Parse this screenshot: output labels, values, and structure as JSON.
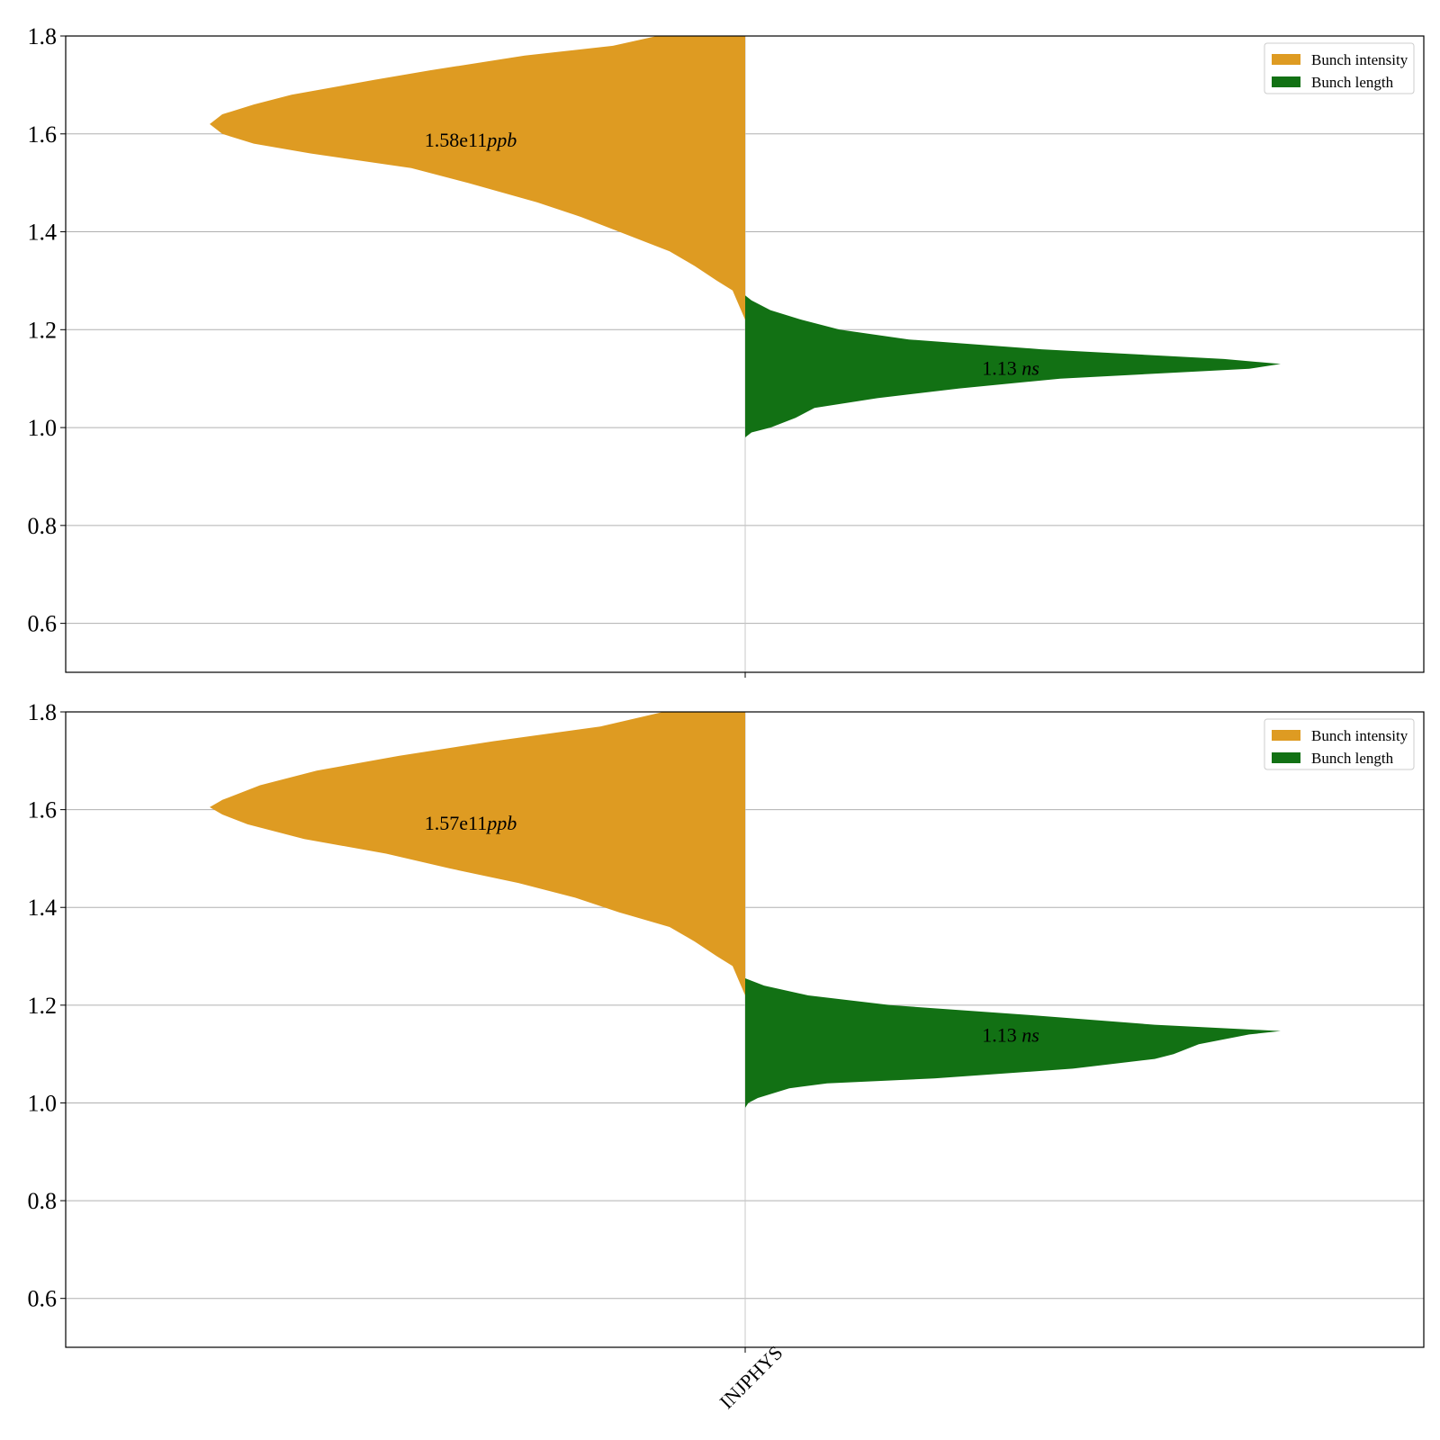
{
  "chart_data": [
    {
      "type": "violin",
      "ylim": [
        0.5,
        1.8
      ],
      "yticks": [
        "0.6",
        "0.8",
        "1.0",
        "1.2",
        "1.4",
        "1.6",
        "1.8"
      ],
      "grid": true,
      "legend_position": "upper right",
      "legend": [
        {
          "label": "Bunch intensity",
          "color": "#de9b22"
        },
        {
          "label": "Bunch length",
          "color": "#127114"
        }
      ],
      "categories": [
        "INJPHYS"
      ],
      "series": [
        {
          "name": "Bunch intensity",
          "side": "left",
          "color": "#de9b22",
          "peak": 1.62,
          "annotation_value": "1.58e11",
          "annotation_unit": "ppb",
          "profile": [
            [
              1.22,
              0.0
            ],
            [
              1.25,
              0.01
            ],
            [
              1.28,
              0.02
            ],
            [
              1.3,
              0.045
            ],
            [
              1.33,
              0.08
            ],
            [
              1.36,
              0.12
            ],
            [
              1.4,
              0.2
            ],
            [
              1.43,
              0.26
            ],
            [
              1.46,
              0.33
            ],
            [
              1.5,
              0.44
            ],
            [
              1.53,
              0.53
            ],
            [
              1.56,
              0.69
            ],
            [
              1.58,
              0.78
            ],
            [
              1.6,
              0.83
            ],
            [
              1.62,
              0.85
            ],
            [
              1.64,
              0.83
            ],
            [
              1.66,
              0.78
            ],
            [
              1.68,
              0.72
            ],
            [
              1.71,
              0.59
            ],
            [
              1.73,
              0.5
            ],
            [
              1.76,
              0.35
            ],
            [
              1.78,
              0.21
            ],
            [
              1.8,
              0.14
            ]
          ]
        },
        {
          "name": "Bunch length",
          "side": "right",
          "color": "#127114",
          "peak": 1.13,
          "annotation_value": "1.13",
          "annotation_unit": "ns",
          "profile": [
            [
              0.98,
              0.0
            ],
            [
              0.99,
              0.01
            ],
            [
              1.0,
              0.04
            ],
            [
              1.02,
              0.08
            ],
            [
              1.04,
              0.11
            ],
            [
              1.06,
              0.21
            ],
            [
              1.08,
              0.34
            ],
            [
              1.1,
              0.5
            ],
            [
              1.12,
              0.8
            ],
            [
              1.13,
              0.85
            ],
            [
              1.14,
              0.76
            ],
            [
              1.16,
              0.47
            ],
            [
              1.18,
              0.26
            ],
            [
              1.2,
              0.15
            ],
            [
              1.22,
              0.09
            ],
            [
              1.24,
              0.04
            ],
            [
              1.26,
              0.01
            ],
            [
              1.27,
              0.0
            ]
          ]
        }
      ]
    },
    {
      "type": "violin",
      "ylim": [
        0.5,
        1.8
      ],
      "yticks": [
        "0.6",
        "0.8",
        "1.0",
        "1.2",
        "1.4",
        "1.6",
        "1.8"
      ],
      "grid": true,
      "legend_position": "upper right",
      "legend": [
        {
          "label": "Bunch intensity",
          "color": "#de9b22"
        },
        {
          "label": "Bunch length",
          "color": "#127114"
        }
      ],
      "categories": [
        "INJPHYS"
      ],
      "series": [
        {
          "name": "Bunch intensity",
          "side": "left",
          "color": "#de9b22",
          "peak": 1.605,
          "annotation_value": "1.57e11",
          "annotation_unit": "ppb",
          "profile": [
            [
              1.22,
              0.0
            ],
            [
              1.25,
              0.01
            ],
            [
              1.28,
              0.02
            ],
            [
              1.3,
              0.045
            ],
            [
              1.33,
              0.08
            ],
            [
              1.36,
              0.12
            ],
            [
              1.39,
              0.2
            ],
            [
              1.42,
              0.27
            ],
            [
              1.45,
              0.36
            ],
            [
              1.48,
              0.47
            ],
            [
              1.51,
              0.57
            ],
            [
              1.54,
              0.7
            ],
            [
              1.57,
              0.79
            ],
            [
              1.59,
              0.83
            ],
            [
              1.605,
              0.85
            ],
            [
              1.62,
              0.83
            ],
            [
              1.65,
              0.77
            ],
            [
              1.68,
              0.68
            ],
            [
              1.71,
              0.55
            ],
            [
              1.74,
              0.4
            ],
            [
              1.77,
              0.23
            ],
            [
              1.8,
              0.13
            ]
          ]
        },
        {
          "name": "Bunch length",
          "side": "right",
          "color": "#127114",
          "peak": 1.147,
          "annotation_value": "1.13",
          "annotation_unit": "ns",
          "profile": [
            [
              0.99,
              0.0
            ],
            [
              1.0,
              0.005
            ],
            [
              1.01,
              0.02
            ],
            [
              1.03,
              0.07
            ],
            [
              1.04,
              0.13
            ],
            [
              1.05,
              0.3
            ],
            [
              1.07,
              0.52
            ],
            [
              1.09,
              0.65
            ],
            [
              1.1,
              0.68
            ],
            [
              1.12,
              0.72
            ],
            [
              1.14,
              0.8
            ],
            [
              1.147,
              0.85
            ],
            [
              1.16,
              0.65
            ],
            [
              1.18,
              0.45
            ],
            [
              1.2,
              0.23
            ],
            [
              1.22,
              0.1
            ],
            [
              1.24,
              0.03
            ],
            [
              1.255,
              0.0
            ]
          ]
        }
      ]
    }
  ]
}
